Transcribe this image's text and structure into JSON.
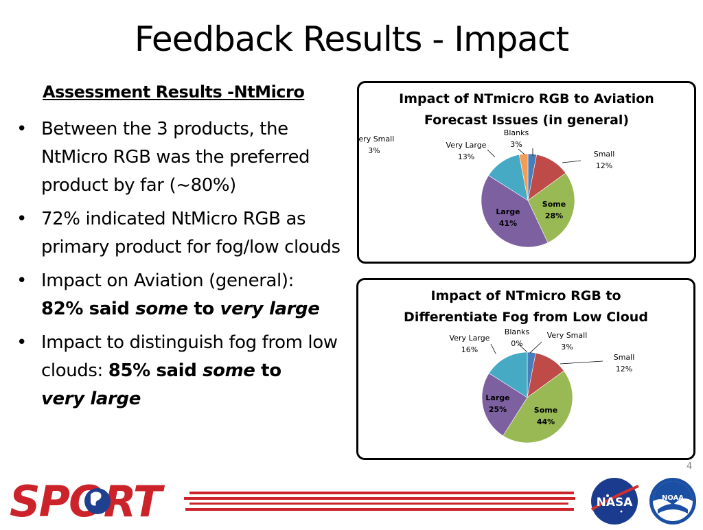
{
  "slide": {
    "title": "Feedback Results - Impact",
    "subhead": "Assessment Results -NtMicro",
    "bullets": {
      "b1": "Between the 3 products, the NtMicro RGB was the preferred product by far (~80%)",
      "b2": "72% indicated NtMicro RGB as primary product for fog/low clouds",
      "b3_plain": "Impact on Aviation (general):",
      "b3_bold1": "82% said ",
      "b3_italic1": "some",
      "b3_bold2": " to ",
      "b3_italic2": "very large",
      "b4_plain": "Impact to distinguish fog from low clouds: ",
      "b4_bold1": "85% said ",
      "b4_italic1": "some",
      "b4_bold2": " to",
      "b4_italic2": "very large"
    },
    "bullet_glyph": "•",
    "page_number": "4",
    "footer": {
      "sport_logo_text": "SPORT",
      "nasa_logo_text": "NASA",
      "noaa_logo_text": "NOAA",
      "accent_red": "#cc2229"
    }
  },
  "chart_data": [
    {
      "type": "pie",
      "title_line1": "Impact of NTmicro RGB to Aviation",
      "title_line2": "Forecast Issues (in general)",
      "slices": [
        {
          "label": "Very Small",
          "value": 3,
          "pct": "3%",
          "color": "#4a7ebb"
        },
        {
          "label": "Small",
          "value": 12,
          "pct": "12%",
          "color": "#be4b48"
        },
        {
          "label": "Some",
          "value": 28,
          "pct": "28%",
          "color": "#98b954"
        },
        {
          "label": "Large",
          "value": 41,
          "pct": "41%",
          "color": "#7d60a0"
        },
        {
          "label": "Very Large",
          "value": 13,
          "pct": "13%",
          "color": "#46aac5"
        },
        {
          "label": "Blanks",
          "value": 3,
          "pct": "3%",
          "color": "#f59d56"
        }
      ]
    },
    {
      "type": "pie",
      "title_line1": "Impact of NTmicro RGB to",
      "title_line2": "Differentiate Fog from Low Cloud",
      "slices": [
        {
          "label": "Very Small",
          "value": 3,
          "pct": "3%",
          "color": "#4a7ebb"
        },
        {
          "label": "Small",
          "value": 12,
          "pct": "12%",
          "color": "#be4b48"
        },
        {
          "label": "Some",
          "value": 44,
          "pct": "44%",
          "color": "#98b954"
        },
        {
          "label": "Large",
          "value": 25,
          "pct": "25%",
          "color": "#7d60a0"
        },
        {
          "label": "Very Large",
          "value": 16,
          "pct": "16%",
          "color": "#46aac5"
        },
        {
          "label": "Blanks",
          "value": 0,
          "pct": "0%",
          "color": "#f59d56"
        }
      ]
    }
  ]
}
